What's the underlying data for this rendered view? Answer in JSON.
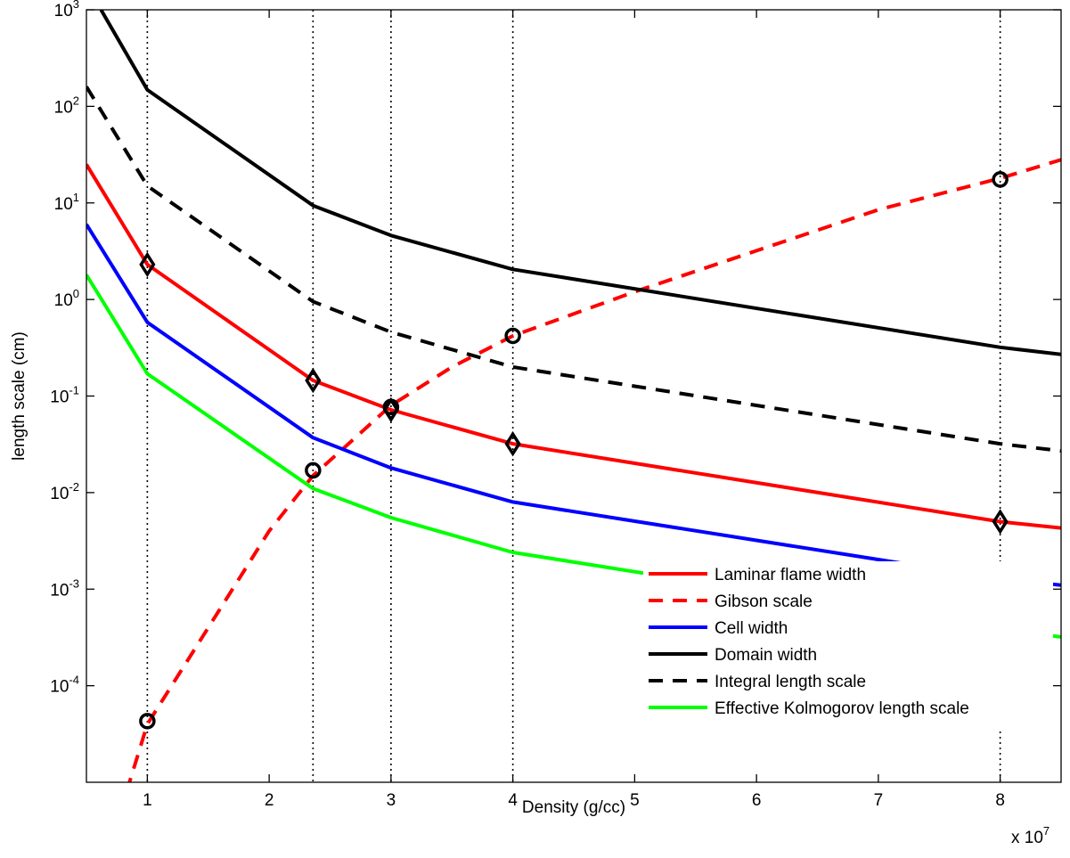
{
  "chart_data": {
    "type": "line",
    "xlabel": "Density (g/cc)",
    "ylabel": "length scale (cm)",
    "x_multiplier_label": "x 10",
    "x_multiplier_exponent": "7",
    "xlim": [
      0.5,
      8.5
    ],
    "ylim": [
      1e-05,
      1000
    ],
    "yscale": "log",
    "x_ticks": [
      1,
      2,
      3,
      4,
      5,
      6,
      7,
      8
    ],
    "x_tick_labels": [
      "1",
      "2",
      "3",
      "4",
      "5",
      "6",
      "7",
      "8"
    ],
    "y_ticks": [
      0.0001,
      0.001,
      0.01,
      0.1,
      1,
      10,
      100,
      1000
    ],
    "y_tick_labels": [
      {
        "base": "10",
        "exp": "-4"
      },
      {
        "base": "10",
        "exp": "-3"
      },
      {
        "base": "10",
        "exp": "-2"
      },
      {
        "base": "10",
        "exp": "-1"
      },
      {
        "base": "10",
        "exp": "0"
      },
      {
        "base": "10",
        "exp": "1"
      },
      {
        "base": "10",
        "exp": "2"
      },
      {
        "base": "10",
        "exp": "3"
      }
    ],
    "vertical_reference_lines": [
      1,
      2.36,
      3,
      4,
      8
    ],
    "legend_position": "bottom-right",
    "series": [
      {
        "name": "Laminar flame width",
        "color": "#ff0000",
        "dash": "solid",
        "x": [
          0.5,
          1,
          2.36,
          3,
          4,
          8,
          8.5
        ],
        "y": [
          25,
          2.3,
          0.145,
          0.072,
          0.032,
          0.005,
          0.0043
        ]
      },
      {
        "name": "Gibson scale",
        "color": "#ff0000",
        "dash": "dashed",
        "x": [
          0.83,
          1,
          1.5,
          2,
          2.36,
          2.6,
          3,
          3.5,
          4,
          5,
          6,
          7,
          8,
          8.5
        ],
        "y": [
          8e-06,
          4e-05,
          0.0004,
          0.004,
          0.015,
          0.028,
          0.08,
          0.2,
          0.42,
          1.2,
          3.2,
          8.5,
          18,
          28
        ]
      },
      {
        "name": "Cell width",
        "color": "#0000ff",
        "dash": "solid",
        "x": [
          0.5,
          1,
          2.36,
          3,
          4,
          8,
          8.5
        ],
        "y": [
          6,
          0.58,
          0.037,
          0.018,
          0.008,
          0.00128,
          0.0011
        ]
      },
      {
        "name": "Domain width",
        "color": "#000000",
        "dash": "solid",
        "x": [
          0.62,
          1,
          2.36,
          3,
          4,
          8,
          8.5
        ],
        "y": [
          1000,
          148,
          9.4,
          4.6,
          2.05,
          0.32,
          0.27
        ]
      },
      {
        "name": "Integral length scale",
        "color": "#000000",
        "dash": "dashed",
        "x": [
          0.5,
          1,
          2.36,
          3,
          4,
          8,
          8.5
        ],
        "y": [
          160,
          15,
          0.95,
          0.46,
          0.2,
          0.032,
          0.027
        ]
      },
      {
        "name": "Effective Kolmogorov length scale",
        "color": "#00ff00",
        "dash": "solid",
        "x": [
          0.5,
          1,
          2.36,
          3,
          4,
          8,
          8.5
        ],
        "y": [
          1.8,
          0.17,
          0.011,
          0.0055,
          0.0024,
          0.00038,
          0.00032
        ]
      }
    ],
    "markers": [
      {
        "shape": "diamond",
        "x": 1,
        "y": 2.3
      },
      {
        "shape": "diamond",
        "x": 2.36,
        "y": 0.145
      },
      {
        "shape": "diamond",
        "x": 3,
        "y": 0.072
      },
      {
        "shape": "diamond",
        "x": 4,
        "y": 0.032
      },
      {
        "shape": "diamond",
        "x": 8,
        "y": 0.005
      },
      {
        "shape": "circle",
        "x": 1,
        "y": 4.3e-05
      },
      {
        "shape": "circle",
        "x": 2.36,
        "y": 0.017
      },
      {
        "shape": "circle",
        "x": 3,
        "y": 0.077
      },
      {
        "shape": "circle",
        "x": 4,
        "y": 0.42
      },
      {
        "shape": "circle",
        "x": 8,
        "y": 17.5
      }
    ]
  }
}
